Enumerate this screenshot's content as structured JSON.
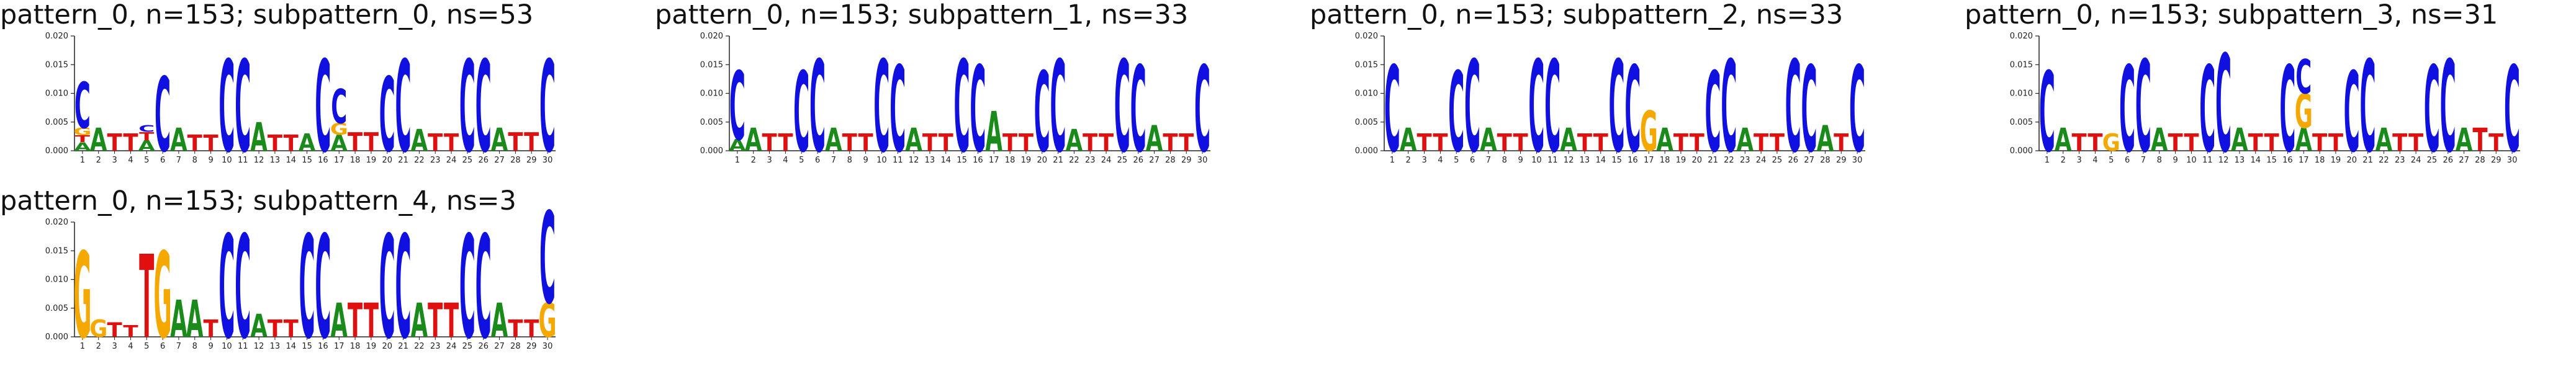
{
  "chart_data": [
    {
      "type": "sequence-logo",
      "title": "pattern_0, n=153; subpattern_0, ns=53",
      "ylim": [
        0,
        0.02
      ],
      "yticks": [
        "0.000",
        "0.005",
        "0.010",
        "0.015",
        "0.020"
      ],
      "positions": [
        "1",
        "2",
        "3",
        "4",
        "5",
        "6",
        "7",
        "8",
        "9",
        "10",
        "11",
        "12",
        "13",
        "14",
        "15",
        "16",
        "17",
        "18",
        "19",
        "20",
        "21",
        "22",
        "23",
        "24",
        "25",
        "26",
        "27",
        "28",
        "29",
        "30"
      ],
      "stacks": [
        [
          [
            "A",
            0.0015
          ],
          [
            "T",
            0.0012
          ],
          [
            "G",
            0.0013
          ],
          [
            "C",
            0.008
          ]
        ],
        [
          [
            "A",
            0.004
          ]
        ],
        [
          [
            "T",
            0.003
          ]
        ],
        [
          [
            "T",
            0.003
          ]
        ],
        [
          [
            "A",
            0.0018
          ],
          [
            "T",
            0.0015
          ],
          [
            "C",
            0.0012
          ]
        ],
        [
          [
            "C",
            0.013
          ]
        ],
        [
          [
            "A",
            0.004
          ]
        ],
        [
          [
            "T",
            0.0028
          ]
        ],
        [
          [
            "T",
            0.0028
          ]
        ],
        [
          [
            "C",
            0.016
          ]
        ],
        [
          [
            "C",
            0.016
          ]
        ],
        [
          [
            "A",
            0.005
          ]
        ],
        [
          [
            "T",
            0.0028
          ]
        ],
        [
          [
            "T",
            0.0028
          ]
        ],
        [
          [
            "A",
            0.003
          ]
        ],
        [
          [
            "C",
            0.016
          ]
        ],
        [
          [
            "A",
            0.0028
          ],
          [
            "G",
            0.002
          ],
          [
            "C",
            0.006
          ]
        ],
        [
          [
            "T",
            0.0032
          ]
        ],
        [
          [
            "T",
            0.0032
          ]
        ],
        [
          [
            "C",
            0.013
          ]
        ],
        [
          [
            "C",
            0.016
          ]
        ],
        [
          [
            "A",
            0.0038
          ]
        ],
        [
          [
            "T",
            0.003
          ]
        ],
        [
          [
            "T",
            0.003
          ]
        ],
        [
          [
            "C",
            0.016
          ]
        ],
        [
          [
            "C",
            0.016
          ]
        ],
        [
          [
            "A",
            0.004
          ]
        ],
        [
          [
            "T",
            0.0032
          ]
        ],
        [
          [
            "T",
            0.0032
          ]
        ],
        [
          [
            "C",
            0.016
          ]
        ]
      ]
    },
    {
      "type": "sequence-logo",
      "title": "pattern_0, n=153; subpattern_1, ns=33",
      "ylim": [
        0,
        0.02
      ],
      "yticks": [
        "0.000",
        "0.005",
        "0.010",
        "0.015",
        "0.020"
      ],
      "positions": [
        "1",
        "2",
        "3",
        "4",
        "5",
        "6",
        "7",
        "8",
        "9",
        "10",
        "11",
        "12",
        "13",
        "14",
        "15",
        "16",
        "17",
        "18",
        "19",
        "20",
        "21",
        "22",
        "23",
        "24",
        "25",
        "26",
        "27",
        "28",
        "29",
        "30"
      ],
      "stacks": [
        [
          [
            "A",
            0.002
          ],
          [
            "C",
            0.012
          ]
        ],
        [
          [
            "A",
            0.004
          ]
        ],
        [
          [
            "T",
            0.003
          ]
        ],
        [
          [
            "T",
            0.003
          ]
        ],
        [
          [
            "C",
            0.014
          ]
        ],
        [
          [
            "C",
            0.016
          ]
        ],
        [
          [
            "A",
            0.004
          ]
        ],
        [
          [
            "T",
            0.003
          ]
        ],
        [
          [
            "T",
            0.003
          ]
        ],
        [
          [
            "C",
            0.016
          ]
        ],
        [
          [
            "C",
            0.015
          ]
        ],
        [
          [
            "A",
            0.004
          ]
        ],
        [
          [
            "T",
            0.003
          ]
        ],
        [
          [
            "T",
            0.003
          ]
        ],
        [
          [
            "C",
            0.016
          ]
        ],
        [
          [
            "C",
            0.015
          ]
        ],
        [
          [
            "A",
            0.007
          ]
        ],
        [
          [
            "T",
            0.003
          ]
        ],
        [
          [
            "T",
            0.003
          ]
        ],
        [
          [
            "C",
            0.014
          ]
        ],
        [
          [
            "C",
            0.016
          ]
        ],
        [
          [
            "A",
            0.0038
          ]
        ],
        [
          [
            "T",
            0.003
          ]
        ],
        [
          [
            "T",
            0.003
          ]
        ],
        [
          [
            "C",
            0.016
          ]
        ],
        [
          [
            "C",
            0.015
          ]
        ],
        [
          [
            "A",
            0.0045
          ]
        ],
        [
          [
            "T",
            0.003
          ]
        ],
        [
          [
            "T",
            0.003
          ]
        ],
        [
          [
            "C",
            0.015
          ]
        ]
      ]
    },
    {
      "type": "sequence-logo",
      "title": "pattern_0, n=153; subpattern_2, ns=33",
      "ylim": [
        0,
        0.02
      ],
      "yticks": [
        "0.000",
        "0.005",
        "0.010",
        "0.015",
        "0.020"
      ],
      "positions": [
        "1",
        "2",
        "3",
        "4",
        "5",
        "6",
        "7",
        "8",
        "9",
        "10",
        "11",
        "12",
        "13",
        "14",
        "15",
        "16",
        "17",
        "18",
        "19",
        "20",
        "21",
        "22",
        "23",
        "24",
        "25",
        "26",
        "27",
        "28",
        "29",
        "30"
      ],
      "stacks": [
        [
          [
            "C",
            0.015
          ]
        ],
        [
          [
            "A",
            0.004
          ]
        ],
        [
          [
            "T",
            0.003
          ]
        ],
        [
          [
            "T",
            0.003
          ]
        ],
        [
          [
            "C",
            0.014
          ]
        ],
        [
          [
            "C",
            0.016
          ]
        ],
        [
          [
            "A",
            0.004
          ]
        ],
        [
          [
            "T",
            0.003
          ]
        ],
        [
          [
            "T",
            0.003
          ]
        ],
        [
          [
            "C",
            0.016
          ]
        ],
        [
          [
            "C",
            0.016
          ]
        ],
        [
          [
            "A",
            0.004
          ]
        ],
        [
          [
            "T",
            0.003
          ]
        ],
        [
          [
            "T",
            0.003
          ]
        ],
        [
          [
            "C",
            0.016
          ]
        ],
        [
          [
            "C",
            0.015
          ]
        ],
        [
          [
            "G",
            0.007
          ]
        ],
        [
          [
            "A",
            0.004
          ]
        ],
        [
          [
            "T",
            0.003
          ]
        ],
        [
          [
            "T",
            0.003
          ]
        ],
        [
          [
            "C",
            0.014
          ]
        ],
        [
          [
            "C",
            0.016
          ]
        ],
        [
          [
            "A",
            0.004
          ]
        ],
        [
          [
            "T",
            0.003
          ]
        ],
        [
          [
            "T",
            0.003
          ]
        ],
        [
          [
            "C",
            0.016
          ]
        ],
        [
          [
            "C",
            0.015
          ]
        ],
        [
          [
            "A",
            0.0045
          ]
        ],
        [
          [
            "T",
            0.003
          ]
        ],
        [
          [
            "C",
            0.015
          ]
        ]
      ]
    },
    {
      "type": "sequence-logo",
      "title": "pattern_0, n=153; subpattern_3, ns=31",
      "ylim": [
        0,
        0.02
      ],
      "yticks": [
        "0.000",
        "0.005",
        "0.010",
        "0.015",
        "0.020"
      ],
      "positions": [
        "1",
        "2",
        "3",
        "4",
        "5",
        "6",
        "7",
        "8",
        "9",
        "10",
        "11",
        "12",
        "13",
        "14",
        "15",
        "16",
        "17",
        "18",
        "19",
        "20",
        "21",
        "22",
        "23",
        "24",
        "25",
        "26",
        "27",
        "28",
        "29",
        "30"
      ],
      "stacks": [
        [
          [
            "C",
            0.014
          ]
        ],
        [
          [
            "A",
            0.004
          ]
        ],
        [
          [
            "T",
            0.003
          ]
        ],
        [
          [
            "T",
            0.003
          ]
        ],
        [
          [
            "G",
            0.003
          ]
        ],
        [
          [
            "C",
            0.015
          ]
        ],
        [
          [
            "C",
            0.016
          ]
        ],
        [
          [
            "A",
            0.004
          ]
        ],
        [
          [
            "T",
            0.003
          ]
        ],
        [
          [
            "T",
            0.003
          ]
        ],
        [
          [
            "C",
            0.015
          ]
        ],
        [
          [
            "C",
            0.017
          ]
        ],
        [
          [
            "A",
            0.004
          ]
        ],
        [
          [
            "T",
            0.003
          ]
        ],
        [
          [
            "T",
            0.003
          ]
        ],
        [
          [
            "C",
            0.015
          ]
        ],
        [
          [
            "A",
            0.004
          ],
          [
            "G",
            0.006
          ],
          [
            "C",
            0.006
          ]
        ],
        [
          [
            "T",
            0.003
          ]
        ],
        [
          [
            "T",
            0.003
          ]
        ],
        [
          [
            "C",
            0.014
          ]
        ],
        [
          [
            "C",
            0.016
          ]
        ],
        [
          [
            "A",
            0.004
          ]
        ],
        [
          [
            "T",
            0.003
          ]
        ],
        [
          [
            "T",
            0.003
          ]
        ],
        [
          [
            "C",
            0.015
          ]
        ],
        [
          [
            "C",
            0.016
          ]
        ],
        [
          [
            "A",
            0.004
          ]
        ],
        [
          [
            "T",
            0.004
          ]
        ],
        [
          [
            "T",
            0.003
          ]
        ],
        [
          [
            "C",
            0.015
          ]
        ]
      ]
    },
    {
      "type": "sequence-logo",
      "title": "pattern_0, n=153; subpattern_4, ns=3",
      "ylim": [
        0,
        0.02
      ],
      "yticks": [
        "0.000",
        "0.005",
        "0.010",
        "0.015",
        "0.020"
      ],
      "positions": [
        "1",
        "2",
        "3",
        "4",
        "5",
        "6",
        "7",
        "8",
        "9",
        "10",
        "11",
        "12",
        "13",
        "14",
        "15",
        "16",
        "17",
        "18",
        "19",
        "20",
        "21",
        "22",
        "23",
        "24",
        "25",
        "26",
        "27",
        "28",
        "29",
        "30"
      ],
      "stacks": [
        [
          [
            "G",
            0.015
          ]
        ],
        [
          [
            "G",
            0.003
          ]
        ],
        [
          [
            "T",
            0.0025
          ]
        ],
        [
          [
            "T",
            0.002
          ]
        ],
        [
          [
            "T",
            0.0145
          ]
        ],
        [
          [
            "G",
            0.015
          ]
        ],
        [
          [
            "A",
            0.0065
          ]
        ],
        [
          [
            "A",
            0.0065
          ]
        ],
        [
          [
            "T",
            0.003
          ]
        ],
        [
          [
            "C",
            0.018
          ]
        ],
        [
          [
            "C",
            0.018
          ]
        ],
        [
          [
            "A",
            0.004
          ]
        ],
        [
          [
            "T",
            0.003
          ]
        ],
        [
          [
            "T",
            0.003
          ]
        ],
        [
          [
            "C",
            0.018
          ]
        ],
        [
          [
            "C",
            0.018
          ]
        ],
        [
          [
            "A",
            0.006
          ]
        ],
        [
          [
            "T",
            0.006
          ]
        ],
        [
          [
            "T",
            0.006
          ]
        ],
        [
          [
            "C",
            0.018
          ]
        ],
        [
          [
            "C",
            0.018
          ]
        ],
        [
          [
            "A",
            0.006
          ]
        ],
        [
          [
            "T",
            0.006
          ]
        ],
        [
          [
            "T",
            0.006
          ]
        ],
        [
          [
            "C",
            0.018
          ]
        ],
        [
          [
            "C",
            0.018
          ]
        ],
        [
          [
            "A",
            0.006
          ]
        ],
        [
          [
            "T",
            0.003
          ]
        ],
        [
          [
            "T",
            0.003
          ]
        ],
        [
          [
            "G",
            0.006
          ],
          [
            "C",
            0.016
          ]
        ]
      ]
    }
  ],
  "colors": {
    "A": "#1a8a1a",
    "C": "#1010e0",
    "G": "#f5a800",
    "T": "#e01010"
  }
}
